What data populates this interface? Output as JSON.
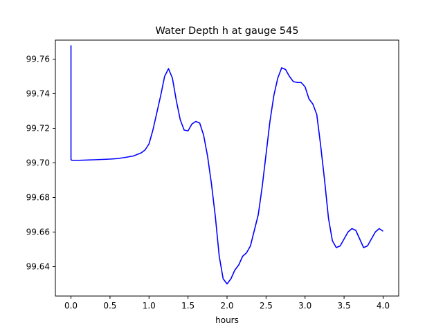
{
  "chart_data": {
    "type": "line",
    "title": "Water Depth h at gauge 545",
    "xlabel": "hours",
    "ylabel": "",
    "xlim": [
      -0.2,
      4.2
    ],
    "ylim": [
      99.623,
      99.771
    ],
    "xticks": [
      0.0,
      0.5,
      1.0,
      1.5,
      2.0,
      2.5,
      3.0,
      3.5,
      4.0
    ],
    "xtick_labels": [
      "0.0",
      "0.5",
      "1.0",
      "1.5",
      "2.0",
      "2.5",
      "3.0",
      "3.5",
      "4.0"
    ],
    "yticks": [
      99.64,
      99.66,
      99.68,
      99.7,
      99.72,
      99.74,
      99.76
    ],
    "ytick_labels": [
      "99.64",
      "99.66",
      "99.68",
      "99.70",
      "99.72",
      "99.74",
      "99.76"
    ],
    "grid": false,
    "series": [
      {
        "color": "#0000ff",
        "x": [
          0.0,
          0.0,
          0.01,
          0.1,
          0.3,
          0.5,
          0.6,
          0.7,
          0.8,
          0.9,
          0.95,
          1.0,
          1.05,
          1.1,
          1.15,
          1.2,
          1.25,
          1.3,
          1.35,
          1.4,
          1.45,
          1.5,
          1.55,
          1.6,
          1.65,
          1.7,
          1.75,
          1.8,
          1.85,
          1.9,
          1.95,
          2.0,
          2.05,
          2.1,
          2.15,
          2.2,
          2.25,
          2.3,
          2.35,
          2.4,
          2.45,
          2.5,
          2.55,
          2.6,
          2.65,
          2.7,
          2.75,
          2.8,
          2.85,
          2.9,
          2.95,
          3.0,
          3.05,
          3.1,
          3.15,
          3.2,
          3.25,
          3.3,
          3.35,
          3.4,
          3.45,
          3.5,
          3.55,
          3.6,
          3.65,
          3.7,
          3.75,
          3.8,
          3.85,
          3.9,
          3.95,
          4.0
        ],
        "y": [
          99.768,
          99.702,
          99.7015,
          99.7015,
          99.7018,
          99.7022,
          99.7025,
          99.7032,
          99.704,
          99.7058,
          99.7075,
          99.711,
          99.719,
          99.729,
          99.739,
          99.75,
          99.7545,
          99.749,
          99.736,
          99.725,
          99.719,
          99.7185,
          99.7225,
          99.724,
          99.723,
          99.716,
          99.704,
          99.688,
          99.669,
          99.646,
          99.633,
          99.63,
          99.633,
          99.638,
          99.641,
          99.646,
          99.648,
          99.652,
          99.661,
          99.67,
          99.686,
          99.705,
          99.724,
          99.739,
          99.749,
          99.755,
          99.754,
          99.75,
          99.747,
          99.7465,
          99.7465,
          99.744,
          99.737,
          99.734,
          99.728,
          99.71,
          99.69,
          99.668,
          99.655,
          99.651,
          99.652,
          99.656,
          99.66,
          99.662,
          99.661,
          99.656,
          99.651,
          99.652,
          99.656,
          99.66,
          99.662,
          99.6605
        ]
      }
    ]
  }
}
